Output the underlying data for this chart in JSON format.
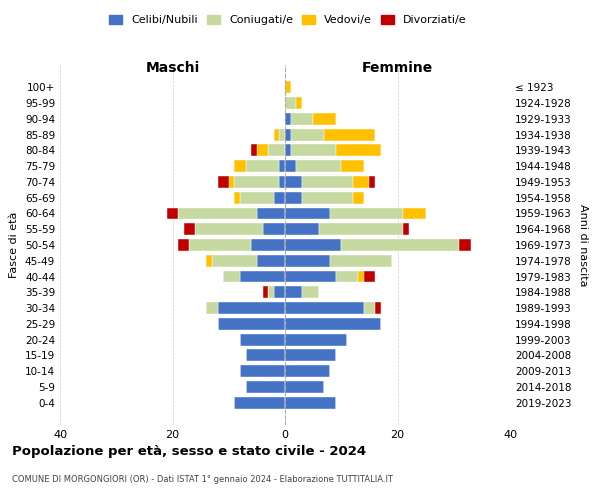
{
  "age_groups": [
    "100+",
    "95-99",
    "90-94",
    "85-89",
    "80-84",
    "75-79",
    "70-74",
    "65-69",
    "60-64",
    "55-59",
    "50-54",
    "45-49",
    "40-44",
    "35-39",
    "30-34",
    "25-29",
    "20-24",
    "15-19",
    "10-14",
    "5-9",
    "0-4"
  ],
  "birth_years": [
    "≤ 1923",
    "1924-1928",
    "1929-1933",
    "1934-1938",
    "1939-1943",
    "1944-1948",
    "1949-1953",
    "1954-1958",
    "1959-1963",
    "1964-1968",
    "1969-1973",
    "1974-1978",
    "1979-1983",
    "1984-1988",
    "1989-1993",
    "1994-1998",
    "1999-2003",
    "2004-2008",
    "2009-2013",
    "2014-2018",
    "2019-2023"
  ],
  "colors": {
    "celibi": "#4472c4",
    "coniugati": "#c5d9a0",
    "vedovi": "#ffc000",
    "divorziati": "#c00000"
  },
  "maschi": {
    "celibi": [
      0,
      0,
      0,
      0,
      0,
      1,
      1,
      2,
      5,
      4,
      6,
      5,
      8,
      2,
      12,
      12,
      8,
      7,
      8,
      7,
      9
    ],
    "coniugati": [
      0,
      0,
      0,
      1,
      3,
      6,
      8,
      6,
      14,
      12,
      11,
      8,
      3,
      1,
      2,
      0,
      0,
      0,
      0,
      0,
      0
    ],
    "vedovi": [
      0,
      0,
      0,
      1,
      2,
      2,
      1,
      1,
      0,
      0,
      0,
      1,
      0,
      0,
      0,
      0,
      0,
      0,
      0,
      0,
      0
    ],
    "divorziati": [
      0,
      0,
      0,
      0,
      1,
      0,
      2,
      0,
      2,
      2,
      2,
      0,
      0,
      1,
      0,
      0,
      0,
      0,
      0,
      0,
      0
    ]
  },
  "femmine": {
    "celibi": [
      0,
      0,
      1,
      1,
      1,
      2,
      3,
      3,
      8,
      6,
      10,
      8,
      9,
      3,
      14,
      17,
      11,
      9,
      8,
      7,
      9
    ],
    "coniugati": [
      0,
      2,
      4,
      6,
      8,
      8,
      9,
      9,
      13,
      15,
      21,
      11,
      4,
      3,
      2,
      0,
      0,
      0,
      0,
      0,
      0
    ],
    "vedovi": [
      1,
      1,
      4,
      9,
      8,
      4,
      3,
      2,
      4,
      0,
      0,
      0,
      1,
      0,
      0,
      0,
      0,
      0,
      0,
      0,
      0
    ],
    "divorziati": [
      0,
      0,
      0,
      0,
      0,
      0,
      1,
      0,
      0,
      1,
      2,
      0,
      2,
      0,
      1,
      0,
      0,
      0,
      0,
      0,
      0
    ]
  },
  "title": "Popolazione per età, sesso e stato civile - 2024",
  "subtitle": "COMUNE DI MORGONGIORI (OR) - Dati ISTAT 1° gennaio 2024 - Elaborazione TUTTITALIA.IT",
  "xlabel_left": "Maschi",
  "xlabel_right": "Femmine",
  "ylabel_left": "Fasce di età",
  "ylabel_right": "Anni di nascita",
  "xlim": 40,
  "legend_labels": [
    "Celibi/Nubili",
    "Coniugati/e",
    "Vedovi/e",
    "Divorziati/e"
  ],
  "background_color": "#ffffff",
  "grid_color": "#cccccc"
}
